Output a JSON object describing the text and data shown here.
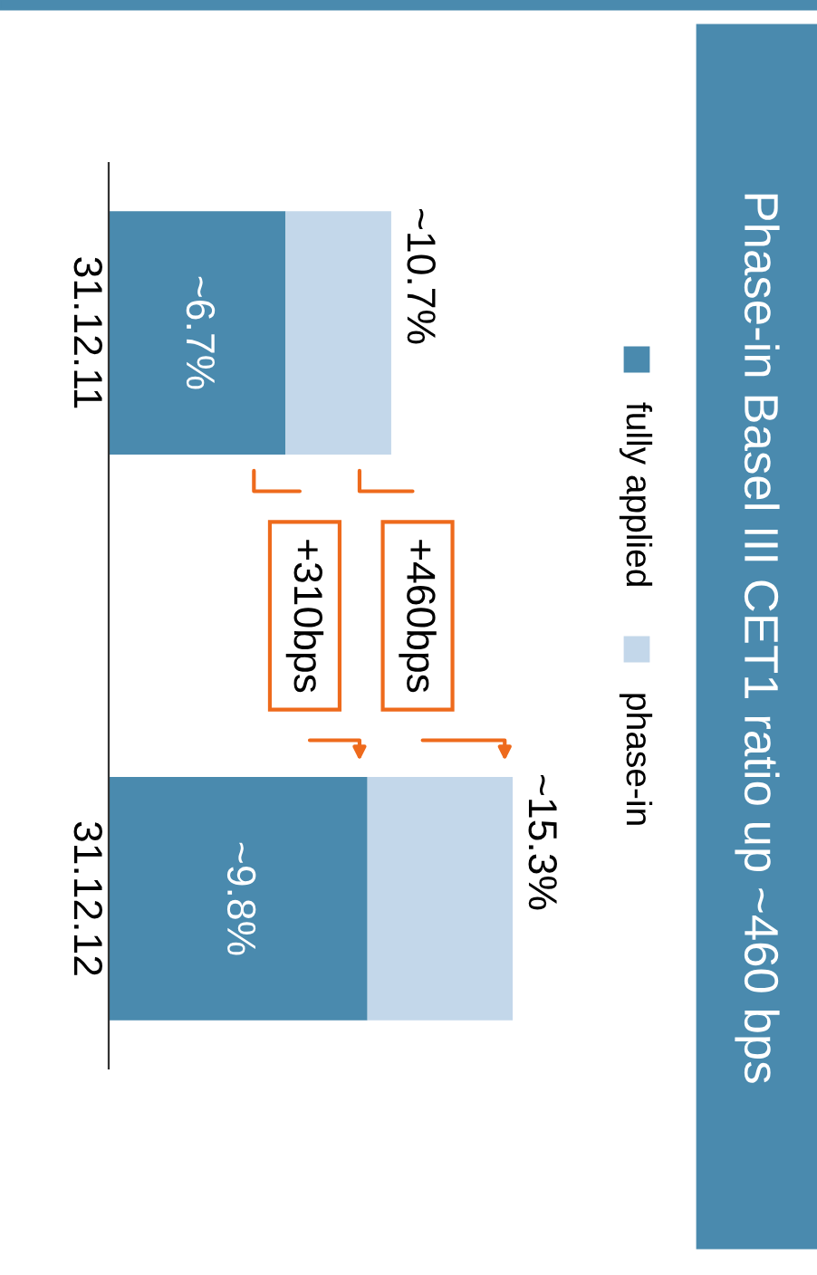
{
  "chart_data": {
    "type": "bar",
    "title": "Phase-in Basel III CET1 ratio up ~460 bps",
    "orientation": "horizontal",
    "stacked": true,
    "legend": "top",
    "categories": [
      "31.12.11",
      "31.12.12"
    ],
    "series": [
      {
        "name": "fully applied",
        "color": "#4a8aae",
        "values": [
          6.7,
          9.8
        ],
        "value_labels": [
          "~6.7%",
          "~9.8%"
        ]
      },
      {
        "name": "phase-in",
        "color": "#c3d7ea",
        "values": [
          4.0,
          5.5
        ]
      }
    ],
    "totals": [
      "~10.7%",
      "~15.3%"
    ],
    "annotations": [
      "+460bps",
      "+310bps"
    ]
  }
}
